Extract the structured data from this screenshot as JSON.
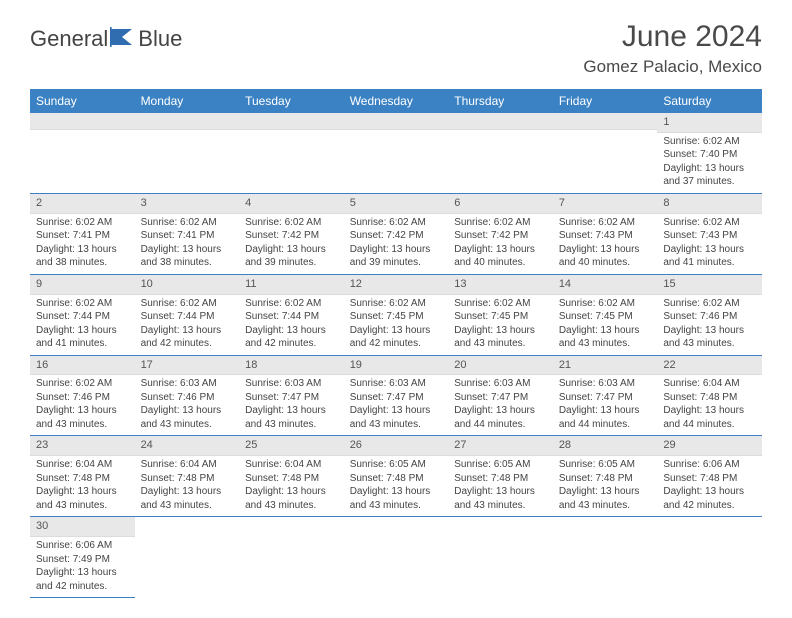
{
  "logo": {
    "text_general": "General",
    "text_blue": "Blue",
    "icon_color": "#2f6db0"
  },
  "header": {
    "month_title": "June 2024",
    "location": "Gomez Palacio, Mexico"
  },
  "styling": {
    "header_bg": "#3b82c4",
    "header_text": "#ffffff",
    "day_header_bg": "#e8e8e8",
    "cell_border": "#3b82c4",
    "body_text": "#444444",
    "title_color": "#4a4a4a"
  },
  "weekdays": [
    "Sunday",
    "Monday",
    "Tuesday",
    "Wednesday",
    "Thursday",
    "Friday",
    "Saturday"
  ],
  "days": [
    {
      "n": 1,
      "sunrise": "6:02 AM",
      "sunset": "7:40 PM",
      "daylight": "13 hours and 37 minutes."
    },
    {
      "n": 2,
      "sunrise": "6:02 AM",
      "sunset": "7:41 PM",
      "daylight": "13 hours and 38 minutes."
    },
    {
      "n": 3,
      "sunrise": "6:02 AM",
      "sunset": "7:41 PM",
      "daylight": "13 hours and 38 minutes."
    },
    {
      "n": 4,
      "sunrise": "6:02 AM",
      "sunset": "7:42 PM",
      "daylight": "13 hours and 39 minutes."
    },
    {
      "n": 5,
      "sunrise": "6:02 AM",
      "sunset": "7:42 PM",
      "daylight": "13 hours and 39 minutes."
    },
    {
      "n": 6,
      "sunrise": "6:02 AM",
      "sunset": "7:42 PM",
      "daylight": "13 hours and 40 minutes."
    },
    {
      "n": 7,
      "sunrise": "6:02 AM",
      "sunset": "7:43 PM",
      "daylight": "13 hours and 40 minutes."
    },
    {
      "n": 8,
      "sunrise": "6:02 AM",
      "sunset": "7:43 PM",
      "daylight": "13 hours and 41 minutes."
    },
    {
      "n": 9,
      "sunrise": "6:02 AM",
      "sunset": "7:44 PM",
      "daylight": "13 hours and 41 minutes."
    },
    {
      "n": 10,
      "sunrise": "6:02 AM",
      "sunset": "7:44 PM",
      "daylight": "13 hours and 42 minutes."
    },
    {
      "n": 11,
      "sunrise": "6:02 AM",
      "sunset": "7:44 PM",
      "daylight": "13 hours and 42 minutes."
    },
    {
      "n": 12,
      "sunrise": "6:02 AM",
      "sunset": "7:45 PM",
      "daylight": "13 hours and 42 minutes."
    },
    {
      "n": 13,
      "sunrise": "6:02 AM",
      "sunset": "7:45 PM",
      "daylight": "13 hours and 43 minutes."
    },
    {
      "n": 14,
      "sunrise": "6:02 AM",
      "sunset": "7:45 PM",
      "daylight": "13 hours and 43 minutes."
    },
    {
      "n": 15,
      "sunrise": "6:02 AM",
      "sunset": "7:46 PM",
      "daylight": "13 hours and 43 minutes."
    },
    {
      "n": 16,
      "sunrise": "6:02 AM",
      "sunset": "7:46 PM",
      "daylight": "13 hours and 43 minutes."
    },
    {
      "n": 17,
      "sunrise": "6:03 AM",
      "sunset": "7:46 PM",
      "daylight": "13 hours and 43 minutes."
    },
    {
      "n": 18,
      "sunrise": "6:03 AM",
      "sunset": "7:47 PM",
      "daylight": "13 hours and 43 minutes."
    },
    {
      "n": 19,
      "sunrise": "6:03 AM",
      "sunset": "7:47 PM",
      "daylight": "13 hours and 43 minutes."
    },
    {
      "n": 20,
      "sunrise": "6:03 AM",
      "sunset": "7:47 PM",
      "daylight": "13 hours and 44 minutes."
    },
    {
      "n": 21,
      "sunrise": "6:03 AM",
      "sunset": "7:47 PM",
      "daylight": "13 hours and 44 minutes."
    },
    {
      "n": 22,
      "sunrise": "6:04 AM",
      "sunset": "7:48 PM",
      "daylight": "13 hours and 44 minutes."
    },
    {
      "n": 23,
      "sunrise": "6:04 AM",
      "sunset": "7:48 PM",
      "daylight": "13 hours and 43 minutes."
    },
    {
      "n": 24,
      "sunrise": "6:04 AM",
      "sunset": "7:48 PM",
      "daylight": "13 hours and 43 minutes."
    },
    {
      "n": 25,
      "sunrise": "6:04 AM",
      "sunset": "7:48 PM",
      "daylight": "13 hours and 43 minutes."
    },
    {
      "n": 26,
      "sunrise": "6:05 AM",
      "sunset": "7:48 PM",
      "daylight": "13 hours and 43 minutes."
    },
    {
      "n": 27,
      "sunrise": "6:05 AM",
      "sunset": "7:48 PM",
      "daylight": "13 hours and 43 minutes."
    },
    {
      "n": 28,
      "sunrise": "6:05 AM",
      "sunset": "7:48 PM",
      "daylight": "13 hours and 43 minutes."
    },
    {
      "n": 29,
      "sunrise": "6:06 AM",
      "sunset": "7:48 PM",
      "daylight": "13 hours and 42 minutes."
    },
    {
      "n": 30,
      "sunrise": "6:06 AM",
      "sunset": "7:49 PM",
      "daylight": "13 hours and 42 minutes."
    }
  ],
  "labels": {
    "sunrise": "Sunrise:",
    "sunset": "Sunset:",
    "daylight": "Daylight:"
  },
  "first_day_column": 6
}
